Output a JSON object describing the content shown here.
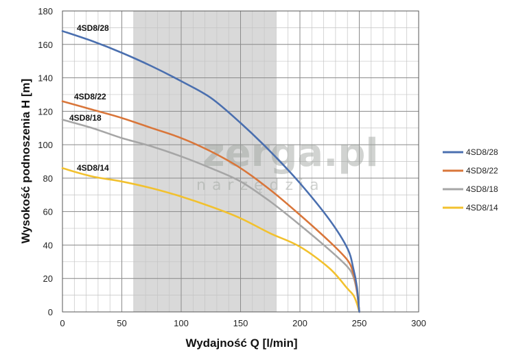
{
  "chart_data": {
    "type": "line",
    "xlabel": "Wydajność Q [l/min]",
    "ylabel": "Wysokość podnoszenia H [m]",
    "xlim": [
      0,
      300
    ],
    "ylim": [
      0,
      180
    ],
    "xticks": [
      0,
      50,
      100,
      150,
      200,
      250,
      300
    ],
    "yticks": [
      0,
      20,
      40,
      60,
      80,
      100,
      120,
      140,
      160,
      180
    ],
    "grid": true,
    "legend_position": "right",
    "highlight_band": [
      60,
      180
    ],
    "series": [
      {
        "name": "4SD8/28",
        "color": "#4a6faf",
        "x": [
          0,
          25,
          50,
          75,
          100,
          125,
          150,
          175,
          200,
          225,
          240,
          245,
          248,
          250
        ],
        "y": [
          168,
          162,
          155,
          147,
          138,
          128,
          113,
          96,
          77,
          55,
          38,
          26,
          15,
          0
        ]
      },
      {
        "name": "4SD8/22",
        "color": "#d9763a",
        "x": [
          0,
          25,
          50,
          75,
          100,
          125,
          150,
          175,
          200,
          225,
          240,
          245,
          248,
          250
        ],
        "y": [
          126,
          121,
          116,
          110,
          104,
          96,
          86,
          73,
          58,
          42,
          31,
          23,
          13,
          0
        ]
      },
      {
        "name": "4SD8/18",
        "color": "#a6a6a6",
        "x": [
          0,
          25,
          50,
          75,
          100,
          125,
          150,
          175,
          200,
          225,
          240,
          245,
          248,
          250
        ],
        "y": [
          115,
          110,
          104,
          99,
          93,
          86,
          78,
          66,
          52,
          37,
          27,
          21,
          12,
          0
        ]
      },
      {
        "name": "4SD8/14",
        "color": "#f2c12e",
        "x": [
          0,
          25,
          50,
          75,
          100,
          125,
          150,
          175,
          200,
          225,
          240,
          245,
          248,
          250
        ],
        "y": [
          86,
          81,
          78,
          74,
          69,
          63,
          56,
          47,
          39,
          26,
          14,
          10,
          5,
          0
        ]
      }
    ],
    "curve_labels": [
      "4SD8/28",
      "4SD8/22",
      "4SD8/18",
      "4SD8/14"
    ]
  },
  "watermark": {
    "brand": "zerga.pl",
    "tagline": "narzędzia"
  }
}
